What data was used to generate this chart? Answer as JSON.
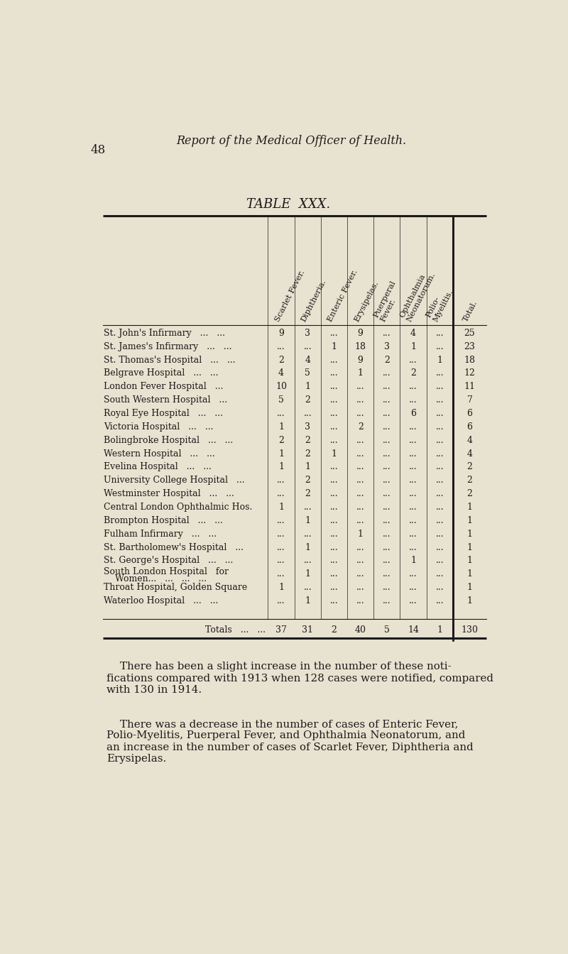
{
  "page_number": "48",
  "header_title": "Report of the Medical Officer of Health.",
  "table_title": "TABLE  XXX.",
  "background_color": "#e8e2d0",
  "text_color": "#1a1a1a",
  "col_headers": [
    "Scarlet Fever.",
    "Diphtheria.",
    "Enteric Fever.",
    "Erysipelas.",
    "Puerperal\nFever.",
    "Ophthalmia\nNeonatorum.",
    "Polio-\nMyelitis.",
    "Total."
  ],
  "rows": [
    [
      "St. John's Infirmary   ...   ...",
      "9",
      "3",
      "...",
      "9",
      "...",
      "4",
      "...",
      "25"
    ],
    [
      "St. James's Infirmary   ...   ...",
      "...",
      "...",
      "1",
      "18",
      "3",
      "1",
      "...",
      "23"
    ],
    [
      "St. Thomas's Hospital   ...   ...",
      "2",
      "4",
      "...",
      "9",
      "2",
      "...",
      "1",
      "18"
    ],
    [
      "Belgrave Hospital   ...   ...",
      "4",
      "5",
      "...",
      "1",
      "...",
      "2",
      "...",
      "12"
    ],
    [
      "London Fever Hospital   ...",
      "10",
      "1",
      "...",
      "...",
      "...",
      "...",
      "...",
      "11"
    ],
    [
      "South Western Hospital   ...",
      "5",
      "2",
      "...",
      "...",
      "...",
      "...",
      "...",
      "7"
    ],
    [
      "Royal Eye Hospital   ...   ...",
      "...",
      "...",
      "...",
      "...",
      "...",
      "6",
      "...",
      "6"
    ],
    [
      "Victoria Hospital   ...   ...",
      "1",
      "3",
      "...",
      "2",
      "...",
      "...",
      "...",
      "6"
    ],
    [
      "Bolingbroke Hospital   ...   ...",
      "2",
      "2",
      "...",
      "...",
      "...",
      "...",
      "...",
      "4"
    ],
    [
      "Western Hospital   ...   ...",
      "1",
      "2",
      "1",
      "...",
      "...",
      "...",
      "...",
      "4"
    ],
    [
      "Evelina Hospital   ...   ...",
      "1",
      "1",
      "...",
      "...",
      "...",
      "...",
      "...",
      "2"
    ],
    [
      "University College Hospital   ...",
      "...",
      "2",
      "...",
      "...",
      "...",
      "...",
      "...",
      "2"
    ],
    [
      "Westminster Hospital   ...   ...",
      "...",
      "2",
      "...",
      "...",
      "...",
      "...",
      "...",
      "2"
    ],
    [
      "Central London Ophthalmic Hos.",
      "1",
      "...",
      "...",
      "...",
      "...",
      "...",
      "...",
      "1"
    ],
    [
      "Brompton Hospital   ...   ...",
      "...",
      "1",
      "...",
      "...",
      "...",
      "...",
      "...",
      "1"
    ],
    [
      "Fulham Infirmary   ...   ...",
      "...",
      "...",
      "...",
      "1",
      "...",
      "...",
      "...",
      "1"
    ],
    [
      "St. Bartholomew's Hospital   ...",
      "...",
      "1",
      "...",
      "...",
      "...",
      "...",
      "...",
      "1"
    ],
    [
      "St. George's Hospital   ...   ...",
      "...",
      "...",
      "...",
      "...",
      "...",
      "1",
      "...",
      "1"
    ],
    [
      "South London Hospital   for",
      "...",
      "1",
      "...",
      "...",
      "...",
      "...",
      "...",
      "1"
    ],
    [
      "Throat Hospital, Golden Square",
      "1",
      "...",
      "...",
      "...",
      "...",
      "...",
      "...",
      "1"
    ],
    [
      "Waterloo Hospital   ...   ...",
      "...",
      "1",
      "...",
      "...",
      "...",
      "...",
      "...",
      "1"
    ]
  ],
  "south_london_second_line": "    Women...   ...   ...   ...",
  "totals_row": [
    "Totals   ...   ...",
    "37",
    "31",
    "2",
    "40",
    "5",
    "14",
    "1",
    "130"
  ],
  "paragraph1_lines": [
    "    There has been a slight increase in the number of these noti-",
    "fications compared with 1913 when 128 cases were notified, compared",
    "with 130 in 1914."
  ],
  "paragraph2_lines": [
    "    There was a decrease in the number of cases of Enteric Fever,",
    "Polio-Myelitis, Puerperal Fever, and Ophthalmia Neonatorum, and",
    "an increase in the number of cases of Scarlet Fever, Diphtheria and",
    "Erysipelas."
  ]
}
